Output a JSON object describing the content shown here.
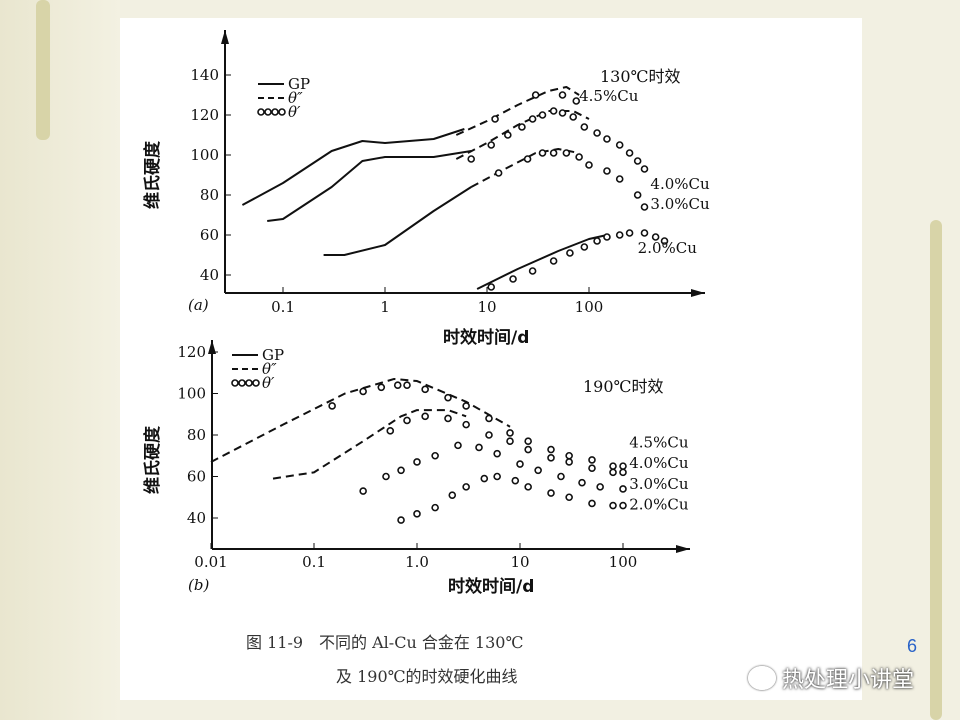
{
  "slide": {
    "page_number": "6",
    "watermark": "热处理小讲堂",
    "watermark_icon": "wechat-icon"
  },
  "caption": {
    "line1": "图 11-9　不同的 Al-Cu 合金在 130℃",
    "line2": "及 190℃的时效硬化曲线"
  },
  "chart_data": [
    {
      "type": "line",
      "panel_label": "(a)",
      "title": "130℃时效",
      "xlabel": "时效时间/d",
      "ylabel": "维氏硬度",
      "xscale": "log",
      "xlim": [
        0.02,
        800
      ],
      "ylim": [
        31,
        145
      ],
      "xticks": [
        {
          "v": 0.1,
          "label": "0.1"
        },
        {
          "v": 1,
          "label": "1"
        },
        {
          "v": 10,
          "label": "10"
        },
        {
          "v": 100,
          "label": "100"
        }
      ],
      "yticks": [
        40,
        60,
        80,
        100,
        120,
        140
      ],
      "legend": {
        "items": [
          {
            "style": "solid",
            "label": "GP"
          },
          {
            "style": "dashed",
            "label": "θ″"
          },
          {
            "style": "circles",
            "label": "θ′"
          }
        ],
        "placement": "top-left"
      },
      "series": [
        {
          "name": "4.5%Cu",
          "label": "4.5%Cu",
          "label_at": [
            80,
            127
          ],
          "GP": [
            [
              0.04,
              75
            ],
            [
              0.1,
              86
            ],
            [
              0.3,
              102
            ],
            [
              0.6,
              107
            ],
            [
              1,
              106
            ],
            [
              3,
              108
            ],
            [
              6,
              113
            ]
          ],
          "theta2": [
            [
              5,
              110
            ],
            [
              10,
              117
            ],
            [
              20,
              125
            ],
            [
              40,
              132
            ],
            [
              60,
              134
            ],
            [
              80,
              130
            ]
          ],
          "theta1": [
            [
              12,
              118
            ],
            [
              30,
              130
            ],
            [
              55,
              130
            ],
            [
              75,
              127
            ]
          ]
        },
        {
          "name": "4.0%Cu",
          "label": "4.0%Cu",
          "label_at": [
            400,
            83
          ],
          "GP": [
            [
              0.07,
              67
            ],
            [
              0.1,
              68
            ],
            [
              0.3,
              84
            ],
            [
              0.6,
              97
            ],
            [
              1,
              99
            ],
            [
              3,
              99
            ],
            [
              7,
              102
            ]
          ],
          "theta2": [
            [
              5,
              98
            ],
            [
              10,
              106
            ],
            [
              20,
              115
            ],
            [
              40,
              122
            ],
            [
              70,
              122
            ],
            [
              100,
              118
            ]
          ],
          "theta1": [
            [
              7,
              98
            ],
            [
              11,
              105
            ],
            [
              16,
              110
            ],
            [
              22,
              114
            ],
            [
              28,
              118
            ],
            [
              35,
              120
            ],
            [
              45,
              122
            ],
            [
              55,
              121
            ],
            [
              70,
              119
            ],
            [
              90,
              114
            ],
            [
              120,
              111
            ],
            [
              150,
              108
            ],
            [
              200,
              105
            ],
            [
              250,
              101
            ],
            [
              300,
              97
            ],
            [
              350,
              93
            ]
          ]
        },
        {
          "name": "3.0%Cu",
          "label": "3.0%Cu",
          "label_at": [
            400,
            73
          ],
          "GP": [
            [
              0.25,
              50
            ],
            [
              0.4,
              50
            ],
            [
              1,
              55
            ],
            [
              3,
              72
            ],
            [
              7,
              84
            ]
          ],
          "theta2": [
            [
              7,
              84
            ],
            [
              15,
              93
            ],
            [
              30,
              101
            ],
            [
              50,
              103
            ],
            [
              80,
              101
            ]
          ],
          "theta1": [
            [
              13,
              91
            ],
            [
              25,
              98
            ],
            [
              35,
              101
            ],
            [
              45,
              101
            ],
            [
              60,
              101
            ],
            [
              80,
              99
            ],
            [
              100,
              95
            ],
            [
              150,
              92
            ],
            [
              200,
              88
            ],
            [
              300,
              80
            ],
            [
              350,
              74
            ]
          ]
        },
        {
          "name": "2.0%Cu",
          "label": "2.0%Cu",
          "label_at": [
            300,
            51
          ],
          "GP": [
            [
              8,
              33
            ],
            [
              20,
              43
            ],
            [
              50,
              52
            ],
            [
              100,
              58
            ],
            [
              150,
              60
            ]
          ],
          "theta2": [],
          "theta1": [
            [
              11,
              34
            ],
            [
              18,
              38
            ],
            [
              28,
              42
            ],
            [
              45,
              47
            ],
            [
              65,
              51
            ],
            [
              90,
              54
            ],
            [
              120,
              57
            ],
            [
              150,
              59
            ],
            [
              200,
              60
            ],
            [
              250,
              61
            ],
            [
              350,
              61
            ],
            [
              450,
              59
            ],
            [
              550,
              57
            ]
          ]
        }
      ]
    },
    {
      "type": "line",
      "panel_label": "(b)",
      "title": "190℃时效",
      "xlabel": "时效时间/d",
      "ylabel": "维氏硬度",
      "xscale": "log",
      "xlim": [
        0.01,
        400
      ],
      "ylim": [
        30,
        125
      ],
      "xticks": [
        {
          "v": 0.01,
          "label": "0.01"
        },
        {
          "v": 0.1,
          "label": "0.1"
        },
        {
          "v": 1,
          "label": "1.0"
        },
        {
          "v": 10,
          "label": "10"
        },
        {
          "v": 100,
          "label": "100"
        }
      ],
      "yticks": [
        40,
        60,
        80,
        100,
        120
      ],
      "legend": {
        "items": [
          {
            "style": "solid",
            "label": "GP"
          },
          {
            "style": "dashed",
            "label": "θ″"
          },
          {
            "style": "circles",
            "label": "θ′"
          }
        ],
        "placement": "top-left"
      },
      "series": [
        {
          "name": "4.5%Cu",
          "label": "4.5%Cu",
          "label_at": [
            115,
            74
          ],
          "GP": [],
          "theta2": [
            [
              0.01,
              67
            ],
            [
              0.05,
              85
            ],
            [
              0.2,
              100
            ],
            [
              0.6,
              107
            ],
            [
              1,
              106
            ],
            [
              3,
              96
            ],
            [
              8,
              84
            ]
          ],
          "theta1": [
            [
              0.15,
              94
            ],
            [
              0.3,
              101
            ],
            [
              0.45,
              103
            ],
            [
              0.65,
              104
            ],
            [
              0.8,
              104
            ],
            [
              1.2,
              102
            ],
            [
              2,
              98
            ],
            [
              3,
              94
            ],
            [
              5,
              88
            ],
            [
              8,
              81
            ],
            [
              12,
              77
            ],
            [
              20,
              73
            ],
            [
              30,
              70
            ],
            [
              50,
              68
            ],
            [
              80,
              65
            ],
            [
              100,
              65
            ]
          ]
        },
        {
          "name": "4.0%Cu",
          "label": "4.0%Cu",
          "label_at": [
            115,
            64
          ],
          "GP": [],
          "theta2": [
            [
              0.04,
              59
            ],
            [
              0.1,
              62
            ],
            [
              0.3,
              77
            ],
            [
              0.7,
              89
            ],
            [
              1,
              92
            ],
            [
              2,
              92
            ],
            [
              3,
              89
            ]
          ],
          "theta1": [
            [
              0.55,
              82
            ],
            [
              0.8,
              87
            ],
            [
              1.2,
              89
            ],
            [
              2,
              88
            ],
            [
              3,
              85
            ],
            [
              5,
              80
            ],
            [
              8,
              77
            ],
            [
              12,
              73
            ],
            [
              20,
              69
            ],
            [
              30,
              67
            ],
            [
              50,
              64
            ],
            [
              80,
              62
            ],
            [
              100,
              62
            ]
          ]
        },
        {
          "name": "3.0%Cu",
          "label": "3.0%Cu",
          "label_at": [
            115,
            54
          ],
          "GP": [],
          "theta2": [],
          "theta1": [
            [
              0.3,
              53
            ],
            [
              0.5,
              60
            ],
            [
              0.7,
              63
            ],
            [
              1,
              67
            ],
            [
              1.5,
              70
            ],
            [
              2.5,
              75
            ],
            [
              4,
              74
            ],
            [
              6,
              71
            ],
            [
              10,
              66
            ],
            [
              15,
              63
            ],
            [
              25,
              60
            ],
            [
              40,
              57
            ],
            [
              60,
              55
            ],
            [
              100,
              54
            ]
          ]
        },
        {
          "name": "2.0%Cu",
          "label": "2.0%Cu",
          "label_at": [
            115,
            44
          ],
          "GP": [],
          "theta2": [],
          "theta1": [
            [
              0.7,
              39
            ],
            [
              1,
              42
            ],
            [
              1.5,
              45
            ],
            [
              2.2,
              51
            ],
            [
              3,
              55
            ],
            [
              4.5,
              59
            ],
            [
              6,
              60
            ],
            [
              9,
              58
            ],
            [
              12,
              55
            ],
            [
              20,
              52
            ],
            [
              30,
              50
            ],
            [
              50,
              47
            ],
            [
              80,
              46
            ],
            [
              100,
              46
            ]
          ]
        }
      ]
    }
  ]
}
